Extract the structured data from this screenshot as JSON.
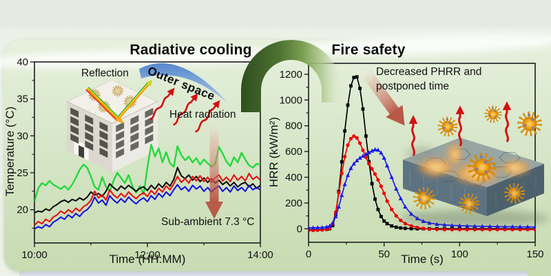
{
  "page": {
    "section_titles": {
      "left": "Radiative cooling",
      "right": "Fire safety"
    }
  },
  "left_panel": {
    "reflection_label": "Reflection",
    "outer_space_label": "Outer space",
    "heat_radiation_label": "Heat radiation",
    "sub_ambient_label": "Sub-ambient 7.3 °C"
  },
  "right_panel": {
    "annotation_line1": "Decreased PHRR and",
    "annotation_line2": "postponed time"
  },
  "colors": {
    "ambient_green": "#25d83c",
    "series_black": "#0d0d0d",
    "series_red": "#e81111",
    "series_blue": "#1616dd",
    "arch_green_dark": "#2f4e1e",
    "outer_space_blue": "#4f83cb",
    "heat_arrow_red": "#d40f0f"
  },
  "chart_data": [
    {
      "type": "line",
      "title": "",
      "xlabel": "Time (HH:MM)",
      "ylabel": "Temperature (°C)",
      "xlim": [
        10,
        14
      ],
      "ylim": [
        15.5,
        40
      ],
      "x_ticks": {
        "values": [
          10,
          12,
          14
        ],
        "labels": [
          "10:00",
          "12:00",
          "14:00"
        ],
        "minor": [
          11,
          13
        ]
      },
      "y_ticks": {
        "values": [
          20,
          25,
          30,
          35,
          40
        ],
        "labels": [
          "20",
          "25",
          "30",
          "35",
          "40"
        ],
        "minor": [
          17.5,
          22.5,
          27.5,
          32.5,
          37.5
        ]
      },
      "x_start": 10,
      "x_step": 0.0666667,
      "series": [
        {
          "name": "ambient-green",
          "color": "#25d83c",
          "width": 2.4,
          "values": [
            21.1,
            22.9,
            23.6,
            23.3,
            23.9,
            23.4,
            23.1,
            22.8,
            23.2,
            22.7,
            23.4,
            24.3,
            25.4,
            26.1,
            25.7,
            24.5,
            23.1,
            22.7,
            24.4,
            23.1,
            22.5,
            23.9,
            25.0,
            24.3,
            23.6,
            24.7,
            23.2,
            22.3,
            23.2,
            22.1,
            25.7,
            28.8,
            27.2,
            28.3,
            26.4,
            27.8,
            26.3,
            25.8,
            28.6,
            27.4,
            26.7,
            27.2,
            26.4,
            27.0,
            26.1,
            26.8,
            26.3,
            25.8,
            26.2,
            28.5,
            27.6,
            26.5,
            25.9,
            27.1,
            26.4,
            27.7,
            26.8,
            26.0,
            25.7,
            26.2,
            26.1
          ]
        },
        {
          "name": "sample-black",
          "color": "#0d0d0d",
          "width": 2.1,
          "values": [
            19.6,
            19.8,
            19.7,
            20.1,
            19.9,
            20.4,
            20.7,
            21.1,
            21.3,
            21.0,
            21.4,
            21.2,
            21.6,
            21.3,
            21.7,
            22.4,
            22.0,
            22.2,
            21.8,
            22.5,
            23.5,
            23.0,
            22.6,
            23.2,
            22.8,
            23.3,
            22.9,
            22.5,
            22.9,
            23.1,
            22.6,
            23.3,
            22.8,
            23.5,
            23.0,
            23.7,
            23.2,
            24.1,
            25.7,
            24.6,
            24.2,
            24.7,
            24.0,
            24.5,
            23.8,
            24.3,
            23.7,
            24.2,
            23.6,
            24.0,
            23.4,
            23.8,
            23.2,
            23.7,
            23.1,
            23.5,
            23.7,
            23.1,
            23.5,
            22.9,
            23.3
          ]
        },
        {
          "name": "sample-red",
          "color": "#e81111",
          "width": 2.1,
          "values": [
            17.9,
            18.4,
            18.1,
            18.7,
            18.4,
            19.0,
            19.3,
            19.8,
            19.5,
            20.0,
            19.6,
            20.2,
            19.8,
            20.4,
            20.7,
            21.3,
            22.5,
            21.6,
            22.0,
            21.3,
            22.7,
            22.0,
            21.6,
            22.2,
            21.7,
            22.4,
            21.9,
            21.5,
            22.0,
            22.3,
            21.8,
            22.6,
            22.1,
            22.9,
            22.4,
            23.2,
            22.7,
            23.5,
            24.5,
            23.7,
            24.2,
            23.6,
            24.5,
            23.9,
            24.6,
            23.8,
            24.4,
            23.7,
            24.3,
            24.7,
            23.9,
            24.4,
            23.8,
            24.7,
            24.0,
            24.5,
            23.9,
            24.9,
            24.1,
            24.5,
            24.0
          ]
        },
        {
          "name": "sample-blue",
          "color": "#1616dd",
          "width": 2.1,
          "values": [
            17.4,
            17.7,
            17.5,
            18.0,
            17.7,
            18.3,
            18.6,
            19.0,
            18.7,
            19.3,
            18.9,
            19.5,
            19.1,
            19.7,
            20.0,
            20.6,
            21.7,
            20.9,
            21.3,
            20.6,
            21.9,
            21.3,
            20.9,
            21.5,
            21.0,
            21.7,
            21.2,
            20.8,
            21.3,
            21.6,
            21.1,
            21.9,
            21.4,
            22.2,
            21.7,
            22.4,
            21.9,
            22.7,
            23.4,
            22.7,
            23.1,
            22.5,
            23.3,
            22.8,
            23.2,
            22.5,
            23.0,
            22.4,
            22.9,
            23.2,
            22.5,
            23.0,
            22.4,
            23.2,
            22.6,
            23.0,
            22.5,
            23.3,
            22.7,
            23.0,
            22.7
          ]
        }
      ]
    },
    {
      "type": "line",
      "title": "",
      "xlabel": "Time (s)",
      "ylabel": "HRR (kW/m²)",
      "xlim": [
        0,
        150
      ],
      "ylim": [
        -105,
        1285
      ],
      "x_ticks": {
        "values": [
          0,
          50,
          100,
          150
        ],
        "labels": [
          "0",
          "50",
          "100",
          "150"
        ],
        "minor": [
          25,
          75,
          125
        ]
      },
      "y_ticks": {
        "values": [
          0,
          200,
          400,
          600,
          800,
          1000,
          1200
        ],
        "labels": [
          "0",
          "200",
          "400",
          "600",
          "800",
          "1000",
          "1200"
        ],
        "minor": [
          100,
          300,
          500,
          700,
          900,
          1100
        ]
      },
      "x": [
        0,
        3,
        6,
        9,
        12,
        14,
        16,
        18,
        20,
        22,
        24,
        26,
        28,
        30,
        32,
        34,
        36,
        38,
        40,
        42,
        44,
        46,
        48,
        50,
        52,
        55,
        58,
        61,
        64,
        68,
        72,
        76,
        80,
        85,
        90,
        95,
        100,
        105,
        110,
        115,
        120,
        125,
        130,
        135,
        140,
        145,
        150
      ],
      "series": [
        {
          "name": "series-black",
          "color": "#000000",
          "width": 1.7,
          "marker": "square",
          "values": [
            -8,
            -8,
            -7,
            -6,
            -4,
            0,
            25,
            110,
            290,
            520,
            760,
            960,
            1110,
            1175,
            1180,
            1090,
            930,
            720,
            520,
            350,
            230,
            150,
            95,
            60,
            40,
            22,
            12,
            6,
            3,
            1,
            0,
            0,
            0,
            0,
            0,
            0,
            0,
            0,
            0,
            0,
            0,
            0,
            0,
            0,
            0,
            0,
            0
          ]
        },
        {
          "name": "series-red",
          "color": "#ee0000",
          "width": 1.7,
          "marker": "circle",
          "values": [
            -12,
            -12,
            -11,
            -9,
            -5,
            5,
            40,
            130,
            280,
            430,
            560,
            650,
            700,
            720,
            705,
            665,
            610,
            555,
            505,
            465,
            425,
            380,
            330,
            275,
            215,
            150,
            100,
            65,
            40,
            22,
            10,
            2,
            -3,
            -5,
            -6,
            -6,
            -6,
            -6,
            -6,
            -6,
            -6,
            -6,
            -6,
            -6,
            -6,
            -6,
            -6
          ]
        },
        {
          "name": "series-blue",
          "color": "#1a1aee",
          "width": 1.7,
          "marker": "triangle",
          "values": [
            8,
            8,
            9,
            10,
            14,
            22,
            45,
            95,
            170,
            260,
            345,
            415,
            470,
            505,
            530,
            550,
            565,
            580,
            592,
            605,
            615,
            612,
            590,
            550,
            490,
            400,
            310,
            235,
            170,
            115,
            80,
            58,
            45,
            35,
            30,
            26,
            24,
            22,
            20,
            19,
            18,
            17,
            16,
            16,
            15,
            15,
            14
          ]
        }
      ]
    }
  ]
}
